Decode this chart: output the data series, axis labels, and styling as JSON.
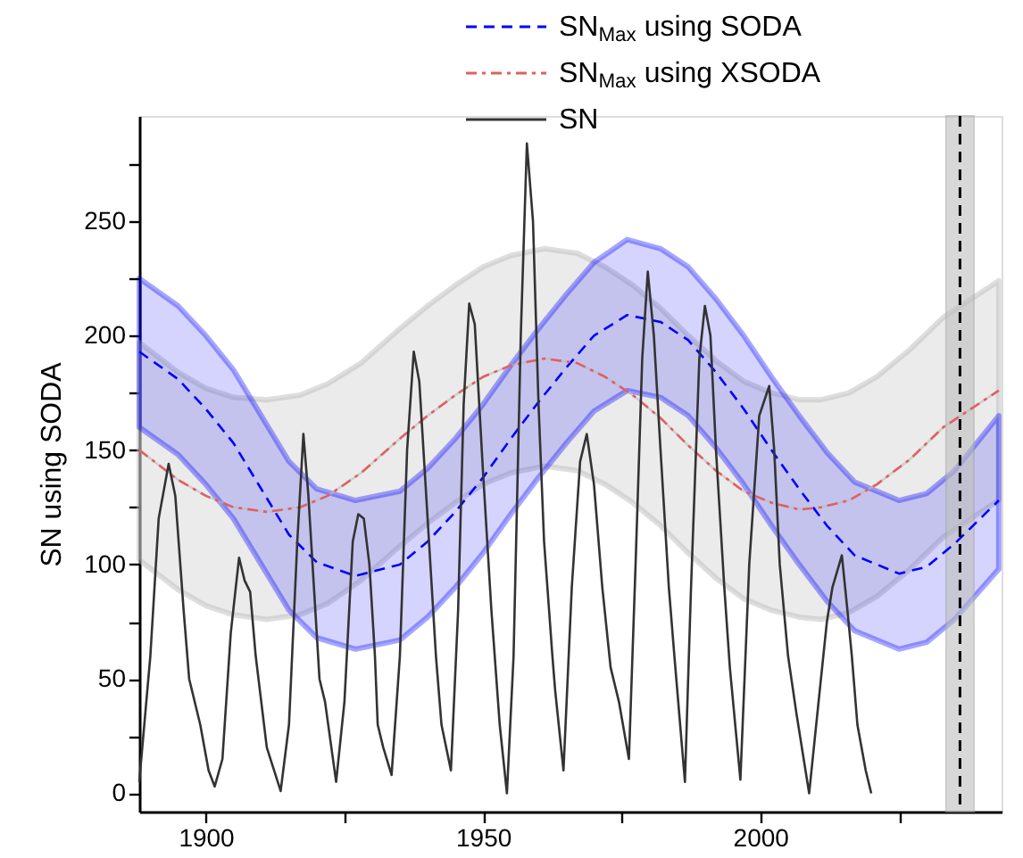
{
  "chart_data": {
    "type": "line",
    "ylabel": "SN using SODA",
    "xlim": [
      1888,
      2043.5
    ],
    "ylim": [
      -8,
      296
    ],
    "xticks": [
      1900,
      {
        "value": 1925,
        "label": null
      },
      1950,
      {
        "value": 1975,
        "label": null
      },
      2000,
      {
        "value": 2025,
        "label": null
      }
    ],
    "yticks": [
      0,
      {
        "value": 25,
        "label": null
      },
      50,
      {
        "value": 75,
        "label": null
      },
      100,
      {
        "value": 125,
        "label": null
      },
      150,
      {
        "value": 175,
        "label": null
      },
      200,
      {
        "value": 225,
        "label": null
      },
      250,
      {
        "value": 275,
        "label": null
      }
    ],
    "grid": false,
    "legend": "top right",
    "ref_lines": [
      {
        "axis": "x",
        "value": 2036,
        "label": null,
        "color": "#000000",
        "line_style": "dashed"
      }
    ],
    "bands": [
      {
        "axis": "x",
        "from": 2033.5,
        "to": 2038.5,
        "label": null,
        "color": "#bfbfbf"
      }
    ],
    "series": [
      {
        "color": "#bdbdbd",
        "line_style": "solid",
        "x": [
          1888,
          1895,
          1900,
          1905,
          1911,
          1917,
          1922,
          1928,
          1935,
          1940,
          1945,
          1950,
          1955,
          1961,
          1967,
          1972,
          1977,
          1982,
          1987,
          1992,
          1997,
          2002,
          2007,
          2011,
          2016,
          2021,
          2027,
          2033,
          2038,
          2043
        ],
        "values": [
          150,
          137,
          130,
          125,
          123,
          125,
          130,
          140,
          155,
          165,
          174,
          182,
          187,
          190,
          188,
          182,
          174,
          164,
          152,
          141,
          132,
          127,
          124,
          125,
          128,
          135,
          146,
          160,
          168,
          176
        ],
        "upper": [
          197,
          184,
          177,
          173,
          172,
          174,
          179,
          188,
          203,
          213,
          222,
          230,
          235,
          238,
          236,
          230,
          222,
          212,
          200,
          189,
          180,
          175,
          172,
          172,
          175,
          182,
          194,
          208,
          216,
          224
        ],
        "lower": [
          102,
          89,
          82,
          78,
          76,
          78,
          83,
          93,
          108,
          118,
          127,
          135,
          140,
          143,
          141,
          135,
          127,
          117,
          105,
          94,
          85,
          80,
          77,
          76,
          79,
          86,
          98,
          112,
          120,
          128
        ]
      },
      {
        "name": "SN$_{Max}$ using SODA",
        "color": "#0000ff",
        "line_style": "dashed",
        "x": [
          1888,
          1895,
          1900,
          1905,
          1910,
          1915,
          1920,
          1927,
          1935,
          1940,
          1945,
          1950,
          1955,
          1960,
          1965,
          1970,
          1976,
          1982,
          1987,
          1992,
          1997,
          2002,
          2007,
          2012,
          2017,
          2025,
          2030,
          2035,
          2043
        ],
        "values": [
          193,
          181,
          168,
          153,
          133,
          113,
          101,
          95,
          100,
          110,
          123,
          138,
          155,
          171,
          186,
          200,
          209,
          206,
          198,
          184,
          168,
          150,
          133,
          117,
          104,
          96,
          99,
          109,
          128
        ],
        "upper": [
          225,
          213,
          200,
          185,
          165,
          145,
          133,
          128,
          132,
          142,
          155,
          170,
          187,
          203,
          218,
          232,
          242,
          238,
          230,
          216,
          200,
          182,
          165,
          149,
          136,
          128,
          131,
          141,
          165
        ],
        "lower": [
          160,
          148,
          135,
          120,
          100,
          80,
          68,
          63,
          67,
          77,
          90,
          105,
          122,
          138,
          153,
          167,
          176,
          173,
          165,
          151,
          135,
          117,
          100,
          84,
          71,
          63,
          66,
          76,
          98
        ]
      },
      {
        "name": "SN$_{Max}$ using XSODA",
        "color": "#e06060",
        "line_style": "dashdot",
        "x": [
          1888,
          1895,
          1900,
          1905,
          1911,
          1917,
          1922,
          1928,
          1935,
          1940,
          1945,
          1950,
          1955,
          1961,
          1967,
          1972,
          1977,
          1982,
          1987,
          1992,
          1997,
          2002,
          2007,
          2011,
          2016,
          2021,
          2027,
          2033,
          2038,
          2043
        ],
        "values": [
          150,
          137,
          130,
          125,
          123,
          125,
          130,
          140,
          155,
          165,
          174,
          182,
          187,
          190,
          188,
          182,
          174,
          164,
          152,
          141,
          132,
          127,
          124,
          125,
          128,
          135,
          146,
          160,
          168,
          176
        ]
      },
      {
        "name": "SN",
        "color": "#333333",
        "line_style": "solid",
        "x": [
          1888,
          1890,
          1891.5,
          1893.3,
          1894.5,
          1896,
          1897,
          1899,
          1900.5,
          1901.6,
          1903,
          1904.5,
          1906,
          1907,
          1908,
          1909,
          1911,
          1913.5,
          1915,
          1916.5,
          1917.6,
          1918.5,
          1919.5,
          1920.5,
          1921.5,
          1923.5,
          1925,
          1926.5,
          1927.5,
          1928.5,
          1929.5,
          1930.5,
          1931,
          1932,
          1933.5,
          1935,
          1936.3,
          1937.5,
          1938.5,
          1940,
          1941.5,
          1942.5,
          1944.2,
          1945.5,
          1946.5,
          1947.5,
          1948.5,
          1950,
          1951.5,
          1953,
          1954.3,
          1955.5,
          1956.8,
          1957.9,
          1959,
          1960,
          1961,
          1962.5,
          1963,
          1964.5,
          1966,
          1967.5,
          1968.7,
          1970,
          1971.5,
          1973,
          1974.5,
          1976.3,
          1977.5,
          1978.7,
          1979.7,
          1980.8,
          1982,
          1983.5,
          1984.5,
          1986.4,
          1987.5,
          1989,
          1990,
          1991,
          1992,
          1993.5,
          1994.5,
          1996.4,
          1998,
          1999.8,
          2001.6,
          2002.5,
          2003.5,
          2005,
          2006.5,
          2008.8,
          2010.5,
          2012,
          2013,
          2014.7,
          2015.7,
          2016.5,
          2017.5,
          2019,
          2020
        ],
        "values": [
          5,
          60,
          120,
          144,
          130,
          80,
          50,
          30,
          10,
          3,
          15,
          70,
          103,
          93,
          88,
          60,
          20,
          1,
          30,
          110,
          157,
          130,
          90,
          50,
          40,
          5,
          40,
          110,
          122,
          120,
          100,
          60,
          30,
          20,
          8,
          60,
          150,
          193,
          180,
          120,
          60,
          30,
          10,
          80,
          170,
          214,
          205,
          140,
          80,
          30,
          0,
          60,
          200,
          284,
          250,
          170,
          110,
          60,
          45,
          10,
          90,
          145,
          157,
          135,
          90,
          55,
          40,
          15,
          100,
          190,
          228,
          200,
          150,
          90,
          60,
          5,
          90,
          190,
          213,
          200,
          150,
          90,
          55,
          6,
          100,
          165,
          178,
          150,
          100,
          60,
          35,
          0,
          40,
          75,
          90,
          104,
          80,
          60,
          30,
          10,
          0
        ]
      }
    ]
  }
}
